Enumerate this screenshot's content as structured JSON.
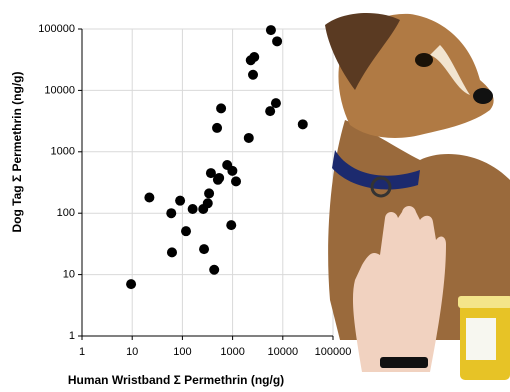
{
  "chart_data": {
    "type": "scatter",
    "x_label": "Human Wristband Σ Permethrin (ng/g)",
    "y_label": "Dog Tag Σ Permethrin (ng/g)",
    "x": [
      9.5,
      22,
      62,
      60,
      90,
      118,
      160,
      260,
      320,
      340,
      370,
      270,
      430,
      510,
      540,
      490,
      590,
      780,
      990,
      1170,
      940,
      2100,
      2300,
      2700,
      2550,
      5600,
      7300,
      5800,
      7700,
      25000
    ],
    "values": [
      7,
      180,
      23,
      100,
      160,
      51,
      117,
      117,
      145,
      210,
      450,
      26,
      12,
      350,
      375,
      2450,
      5100,
      610,
      490,
      330,
      64,
      1680,
      31000,
      35000,
      18000,
      4600,
      6200,
      96000,
      63000,
      2800
    ],
    "color": "#000000",
    "xscale": "log",
    "yscale": "log",
    "xlim": [
      1,
      100000
    ],
    "ylim": [
      1,
      100000
    ],
    "xticks": [
      1,
      10,
      100,
      1000,
      10000,
      100000
    ],
    "yticks": [
      1,
      10,
      100,
      1000,
      10000,
      100000
    ],
    "grid": true
  }
}
